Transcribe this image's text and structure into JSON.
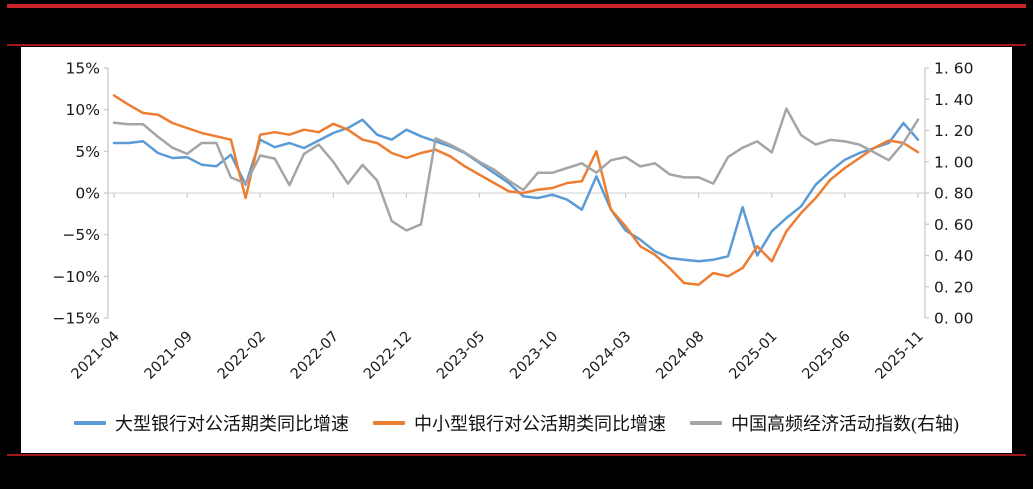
{
  "page": {
    "background_color": "#000000",
    "top_rule_color": "#c9222b",
    "header_divider_color": "#a2161c",
    "footer_rule_color": "#a2161c",
    "plot_background": "#ffffff",
    "axis_line_color": "#c6c6c6",
    "zero_line_color": "#d9d9d9",
    "axis_text_color": "#1a1a1a"
  },
  "chart_data": {
    "type": "line",
    "title": "",
    "grid": "zero-line-only",
    "legend_position": "bottom",
    "x_label_rotation": -45,
    "x": [
      "2021-04",
      "2021-05",
      "2021-06",
      "2021-07",
      "2021-08",
      "2021-09",
      "2021-10",
      "2021-11",
      "2021-12",
      "2022-01",
      "2022-02",
      "2022-03",
      "2022-04",
      "2022-05",
      "2022-06",
      "2022-07",
      "2022-08",
      "2022-09",
      "2022-10",
      "2022-11",
      "2022-12",
      "2023-01",
      "2023-02",
      "2023-03",
      "2023-04",
      "2023-05",
      "2023-06",
      "2023-07",
      "2023-08",
      "2023-09",
      "2023-10",
      "2023-11",
      "2023-12",
      "2024-01",
      "2024-02",
      "2024-03",
      "2024-04",
      "2024-05",
      "2024-06",
      "2024-07",
      "2024-08",
      "2024-09",
      "2024-10",
      "2024-11",
      "2024-12",
      "2025-01",
      "2025-02",
      "2025-03",
      "2025-04",
      "2025-05",
      "2025-06",
      "2025-07",
      "2025-08",
      "2025-09",
      "2025-10",
      "2025-11"
    ],
    "x_tick_labels": [
      "2021-04",
      "2021-09",
      "2022-02",
      "2022-07",
      "2022-12",
      "2023-05",
      "2023-10",
      "2024-03",
      "2024-08",
      "2025-01",
      "2025-06",
      "2025-11"
    ],
    "x_tick_step": 5,
    "left_axis": {
      "unit": "%",
      "min": -15,
      "max": 15,
      "tick_labels": [
        "15%",
        "10%",
        "5%",
        "0%",
        "−5%",
        "−10%",
        "−15%"
      ]
    },
    "right_axis": {
      "min": 0,
      "max": 1.6,
      "tick_labels": [
        "1. 60",
        "1. 40",
        "1. 20",
        "1. 00",
        "0. 80",
        "0. 60",
        "0. 40",
        "0. 20",
        "0. 00"
      ]
    },
    "series": [
      {
        "name": "大型银行对公活期类同比增速",
        "color": "#5B9BD5",
        "axis": "left",
        "values": [
          6.0,
          6.0,
          6.2,
          4.8,
          4.2,
          4.3,
          3.4,
          3.2,
          4.6,
          1.0,
          6.4,
          5.5,
          6.0,
          5.4,
          6.3,
          7.2,
          7.8,
          8.8,
          7.0,
          6.4,
          7.6,
          6.8,
          6.2,
          5.6,
          4.8,
          3.6,
          2.4,
          1.2,
          -0.4,
          -0.6,
          -0.2,
          -0.8,
          -2.0,
          2.0,
          -2.0,
          -4.5,
          -5.6,
          -7.0,
          -7.8,
          -8.0,
          -8.2,
          -8.0,
          -7.6,
          -1.7,
          -7.5,
          -4.6,
          -3.0,
          -1.6,
          1.0,
          2.6,
          4.0,
          4.8,
          5.4,
          6.0,
          8.4,
          6.4
        ]
      },
      {
        "name": "中小型银行对公活期类同比增速",
        "color": "#ED7D31",
        "axis": "left",
        "values": [
          11.7,
          10.6,
          9.6,
          9.4,
          8.4,
          7.8,
          7.2,
          6.8,
          6.4,
          -0.6,
          7.0,
          7.3,
          7.0,
          7.6,
          7.3,
          8.3,
          7.6,
          6.4,
          6.0,
          4.8,
          4.2,
          4.8,
          5.2,
          4.4,
          3.2,
          2.2,
          1.2,
          0.2,
          0.0,
          0.4,
          0.6,
          1.2,
          1.4,
          5.0,
          -2.0,
          -4.0,
          -6.4,
          -7.4,
          -9.0,
          -10.8,
          -11.0,
          -9.6,
          -10.0,
          -9.0,
          -6.4,
          -8.2,
          -4.6,
          -2.4,
          -0.6,
          1.6,
          3.0,
          4.2,
          5.4,
          6.3,
          6.0,
          4.9
        ]
      },
      {
        "name": "中国高频经济活动指数(右轴)",
        "color": "#A5A5A5",
        "axis": "right",
        "values": [
          1.25,
          1.24,
          1.24,
          1.16,
          1.09,
          1.05,
          1.12,
          1.12,
          0.9,
          0.86,
          1.04,
          1.02,
          0.85,
          1.05,
          1.11,
          1.0,
          0.86,
          0.98,
          0.88,
          0.62,
          0.56,
          0.6,
          1.15,
          1.11,
          1.06,
          1.0,
          0.95,
          0.88,
          0.82,
          0.93,
          0.93,
          0.96,
          0.99,
          0.93,
          1.01,
          1.03,
          0.97,
          0.99,
          0.92,
          0.9,
          0.9,
          0.86,
          1.03,
          1.09,
          1.13,
          1.06,
          1.34,
          1.17,
          1.11,
          1.14,
          1.13,
          1.11,
          1.06,
          1.01,
          1.12,
          1.27
        ]
      }
    ]
  }
}
